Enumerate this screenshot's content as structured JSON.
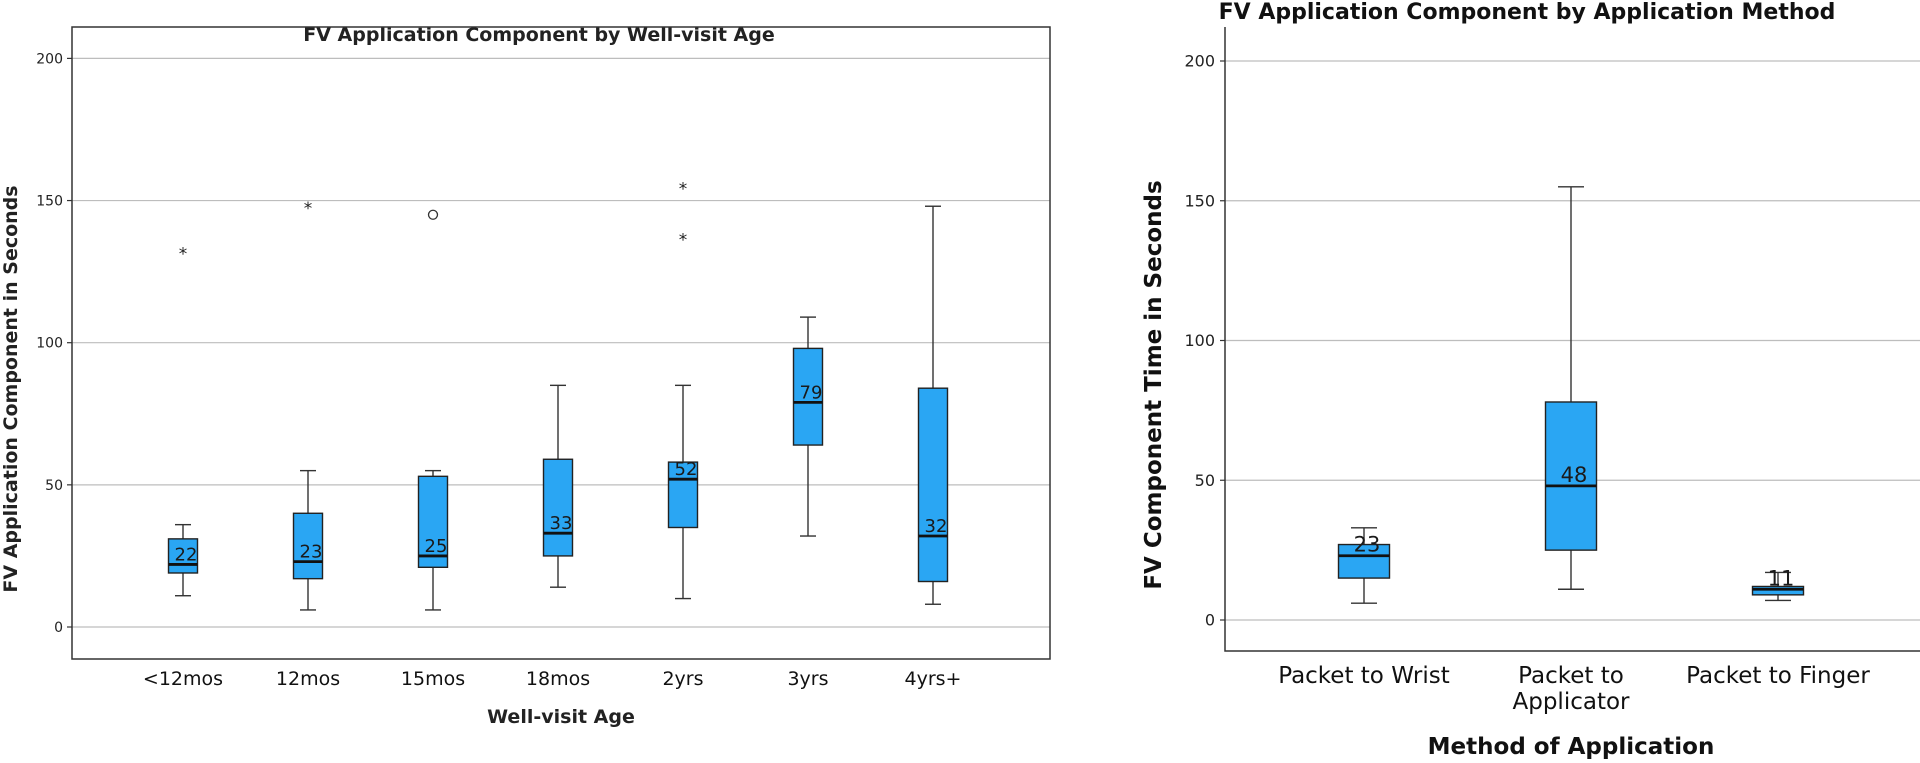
{
  "chart_data": [
    {
      "type": "boxplot",
      "title": "FV Application Component by Well-visit Age",
      "xlabel": "Well-visit Age",
      "ylabel": "FV Application Component in Seconds",
      "ylim": [
        -12,
        210
      ],
      "yticks": [
        0,
        50,
        100,
        150,
        200
      ],
      "grid": true,
      "categories": [
        "<12mos",
        "12mos",
        "15mos",
        "18mos",
        "2yrs",
        "3yrs",
        "4yrs+"
      ],
      "boxes": [
        {
          "category": "<12mos",
          "whisker_low": 11,
          "q1": 19,
          "median": 22,
          "q3": 31,
          "whisker_high": 36,
          "median_label": "22",
          "outliers": [
            {
              "value": 132,
              "marker": "*"
            }
          ]
        },
        {
          "category": "12mos",
          "whisker_low": 6,
          "q1": 17,
          "median": 23,
          "q3": 40,
          "whisker_high": 55,
          "median_label": "23",
          "outliers": [
            {
              "value": 148,
              "marker": "*"
            }
          ]
        },
        {
          "category": "15mos",
          "whisker_low": 6,
          "q1": 21,
          "median": 25,
          "q3": 53,
          "whisker_high": 55,
          "median_label": "25",
          "outliers": [
            {
              "value": 145,
              "marker": "o"
            }
          ]
        },
        {
          "category": "18mos",
          "whisker_low": 14,
          "q1": 25,
          "median": 33,
          "q3": 59,
          "whisker_high": 85,
          "median_label": "33",
          "outliers": []
        },
        {
          "category": "2yrs",
          "whisker_low": 10,
          "q1": 35,
          "median": 52,
          "q3": 58,
          "whisker_high": 85,
          "median_label": "52",
          "outliers": [
            {
              "value": 137,
              "marker": "*"
            },
            {
              "value": 155,
              "marker": "*"
            }
          ]
        },
        {
          "category": "3yrs",
          "whisker_low": 32,
          "q1": 64,
          "median": 79,
          "q3": 98,
          "whisker_high": 109,
          "median_label": "79",
          "outliers": []
        },
        {
          "category": "4yrs+",
          "whisker_low": 8,
          "q1": 16,
          "median": 32,
          "q3": 84,
          "whisker_high": 148,
          "median_label": "32",
          "outliers": []
        }
      ]
    },
    {
      "type": "boxplot",
      "title": "FV Application Component by Application Method",
      "xlabel": "Method of Application",
      "ylabel": "FV Component Time in Seconds",
      "ylim": [
        -12,
        205
      ],
      "yticks": [
        0,
        50,
        100,
        150,
        200
      ],
      "grid": true,
      "categories": [
        [
          "Packet to Wrist"
        ],
        [
          "Packet to",
          "Applicator"
        ],
        [
          "Packet to Finger"
        ]
      ],
      "boxes": [
        {
          "category": "Packet to Wrist",
          "whisker_low": 6,
          "q1": 15,
          "median": 23,
          "q3": 27,
          "whisker_high": 33,
          "median_label": "23",
          "outliers": []
        },
        {
          "category": "Packet to Applicator",
          "whisker_low": 11,
          "q1": 25,
          "median": 48,
          "q3": 78,
          "whisker_high": 155,
          "median_label": "48",
          "outliers": []
        },
        {
          "category": "Packet to Finger",
          "whisker_low": 7,
          "q1": 9,
          "median": 11,
          "q3": 12,
          "whisker_high": 17,
          "median_label": "11",
          "outliers": []
        }
      ]
    }
  ]
}
